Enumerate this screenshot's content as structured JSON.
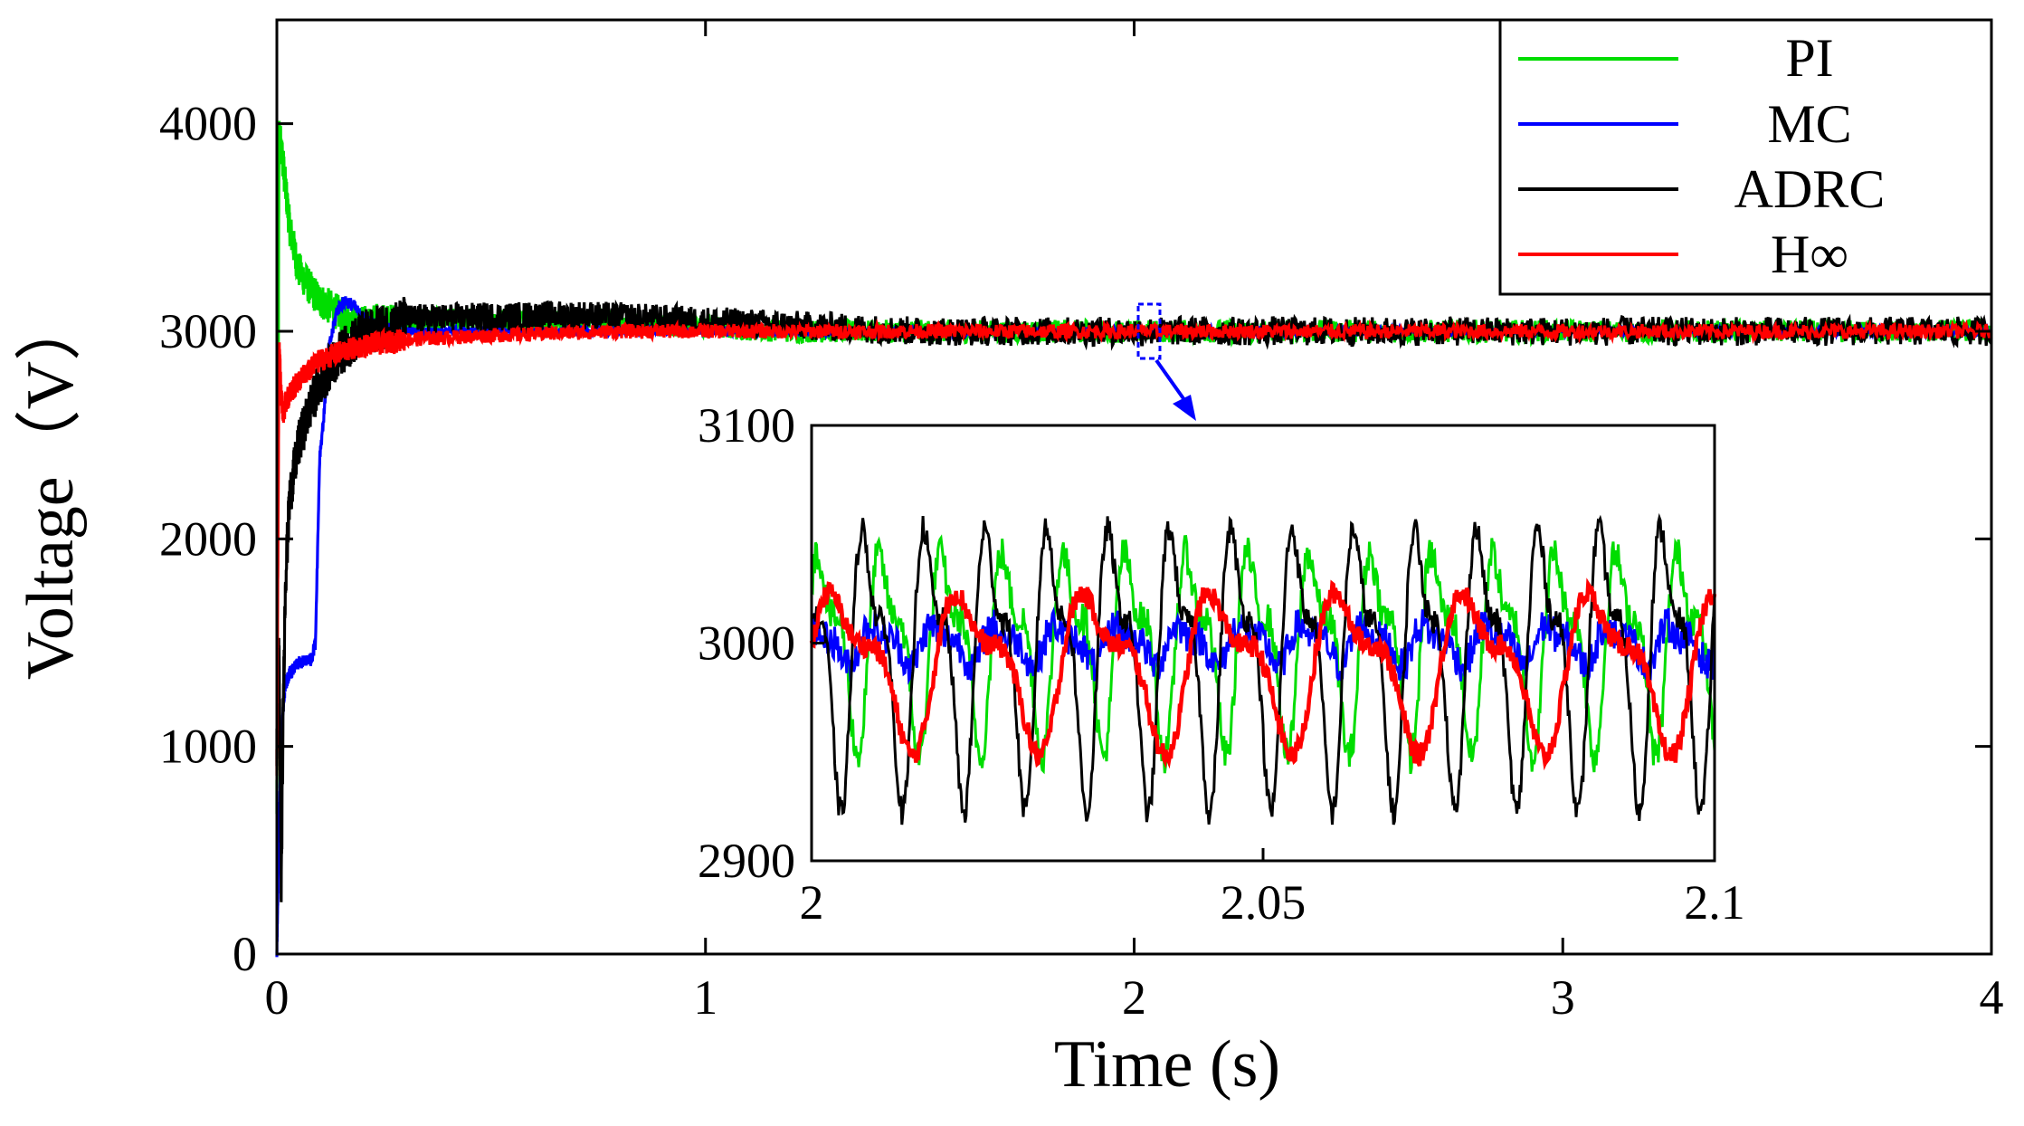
{
  "chart_data": [
    {
      "id": "main",
      "type": "line",
      "title": "",
      "xlabel": "Time (s)",
      "ylabel": "Voltage（V）",
      "xlim": [
        0,
        4
      ],
      "ylim": [
        0,
        4500
      ],
      "xticks": [
        0,
        1,
        2,
        3,
        4
      ],
      "xtick_labels": [
        "0",
        "1",
        "2",
        "3",
        "4"
      ],
      "yticks": [
        0,
        1000,
        2000,
        3000,
        4000
      ],
      "ytick_labels": [
        "0",
        "1000",
        "2000",
        "3000",
        "4000"
      ],
      "legend_position": "top-right",
      "legend": [
        "PI",
        "MC",
        "ADRC",
        "H∞"
      ],
      "series": [
        {
          "name": "PI",
          "color": "#00dd00",
          "x": [
            0,
            0.005,
            0.01,
            0.02,
            0.03,
            0.05,
            0.08,
            0.1,
            0.15,
            0.2,
            0.3,
            0.5,
            0.8,
            1.2,
            1.5,
            2,
            3,
            4
          ],
          "y": [
            700,
            3950,
            3900,
            3700,
            3500,
            3300,
            3200,
            3150,
            3080,
            3040,
            3050,
            3060,
            3040,
            3000,
            3000,
            3000,
            3000,
            3000
          ],
          "ripple": 55
        },
        {
          "name": "MC",
          "color": "#0000ff",
          "x": [
            0,
            0.005,
            0.01,
            0.015,
            0.02,
            0.03,
            0.05,
            0.08,
            0.09,
            0.1,
            0.11,
            0.12,
            0.14,
            0.16,
            0.18,
            0.2,
            0.25,
            0.3,
            0.5,
            1,
            2,
            3,
            4
          ],
          "y": [
            0,
            600,
            1000,
            1200,
            1300,
            1350,
            1400,
            1420,
            1500,
            2400,
            2600,
            2900,
            3100,
            3150,
            3120,
            3060,
            3010,
            3000,
            3000,
            3000,
            3000,
            3000,
            3000
          ],
          "ripple": 20
        },
        {
          "name": "ADRC",
          "color": "#000000",
          "x": [
            0,
            0.005,
            0.01,
            0.015,
            0.02,
            0.03,
            0.05,
            0.08,
            0.1,
            0.15,
            0.2,
            0.3,
            0.5,
            0.7,
            1.0,
            1.5,
            2,
            3,
            4
          ],
          "y": [
            1000,
            1500,
            300,
            1200,
            1800,
            2200,
            2450,
            2650,
            2750,
            2900,
            2990,
            3060,
            3070,
            3080,
            3050,
            3000,
            3000,
            3000,
            3000
          ],
          "ripple": 70
        },
        {
          "name": "H∞",
          "color": "#ff0000",
          "x": [
            0,
            0.005,
            0.01,
            0.015,
            0.02,
            0.03,
            0.05,
            0.08,
            0.1,
            0.15,
            0.2,
            0.3,
            0.5,
            0.8,
            1,
            2,
            3,
            4
          ],
          "y": [
            900,
            2950,
            2700,
            2600,
            2650,
            2700,
            2760,
            2820,
            2860,
            2900,
            2930,
            2960,
            2980,
            3000,
            3000,
            3000,
            3000,
            3000
          ],
          "ripple": 35
        }
      ]
    },
    {
      "id": "inset",
      "type": "line",
      "title": "",
      "xlim": [
        2,
        2.1
      ],
      "ylim": [
        2900,
        3100
      ],
      "xticks": [
        2,
        2.05,
        2.1
      ],
      "xtick_labels": [
        "2",
        "2.05",
        "2.1"
      ],
      "yticks": [
        2900,
        3000,
        3100
      ],
      "ytick_labels": [
        "2900",
        "3000",
        "3100"
      ],
      "series": [
        {
          "name": "PI",
          "color": "#00dd00",
          "mean": 3000,
          "amplitude": 50,
          "period": 0.0068,
          "phase": 0.3,
          "noise": 8
        },
        {
          "name": "MC",
          "color": "#0000ff",
          "mean": 3000,
          "amplitude": 10,
          "period": 0.0068,
          "phase": 1.2,
          "noise": 8
        },
        {
          "name": "ADRC",
          "color": "#000000",
          "mean": 2995,
          "amplitude": 70,
          "period": 0.0068,
          "phase": 2.0,
          "noise": 6
        },
        {
          "name": "H∞",
          "color": "#ff0000",
          "mean": 2990,
          "amplitude": 40,
          "period": 0.014,
          "phase": 0.0,
          "noise": 5
        }
      ]
    }
  ],
  "annotation": {
    "arrow_color": "#0000ff",
    "zoom_x": [
      1.99,
      2.04
    ],
    "zoom_y": [
      2950,
      3050
    ]
  }
}
